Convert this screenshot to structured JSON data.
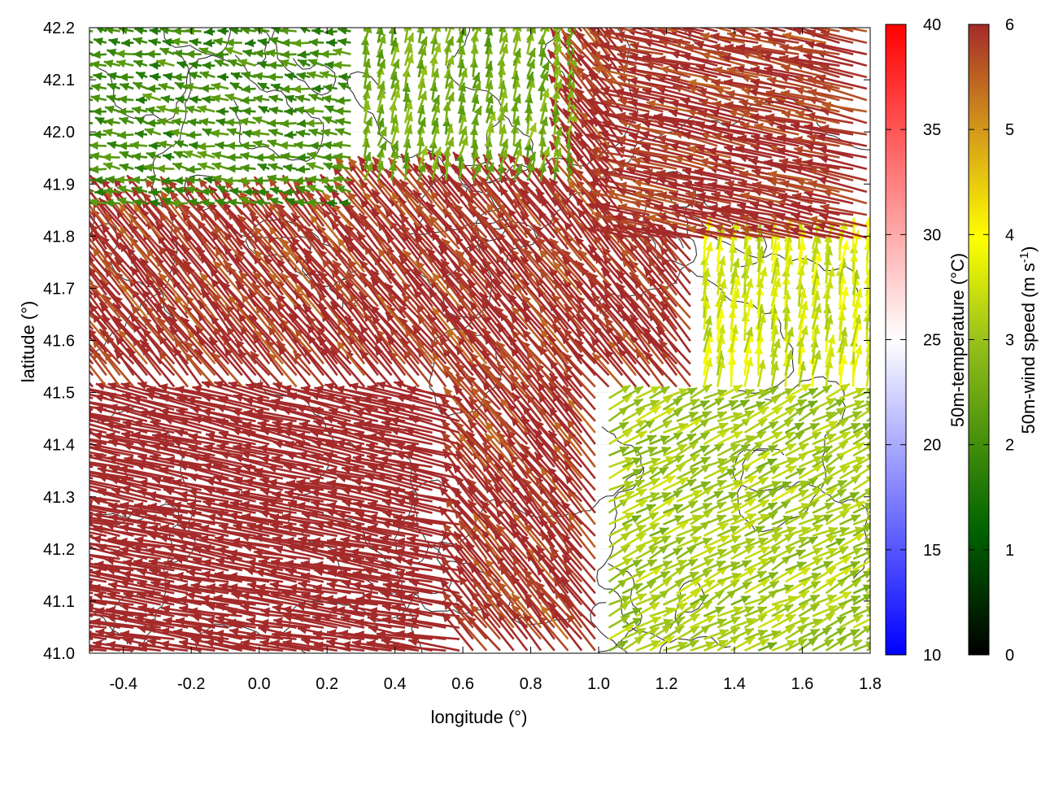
{
  "chart_data": {
    "type": "vector-field",
    "xlabel": "longitude (°)",
    "ylabel": "latitude (°)",
    "xlim": [
      -0.5,
      1.8
    ],
    "ylim": [
      41.0,
      42.2
    ],
    "x_ticks": [
      "-0.4",
      "-0.2",
      "0.0",
      "0.2",
      "0.4",
      "0.6",
      "0.8",
      "1.0",
      "1.2",
      "1.4",
      "1.6",
      "1.8"
    ],
    "y_ticks": [
      "41.0",
      "41.1",
      "41.2",
      "41.3",
      "41.4",
      "41.5",
      "41.6",
      "41.7",
      "41.8",
      "41.9",
      "42.0",
      "42.1",
      "42.2"
    ],
    "grid": true,
    "temperature_colorbar": {
      "label": "50m-temperature (°C)",
      "range": [
        10,
        40
      ],
      "ticks": [
        "10",
        "15",
        "20",
        "25",
        "30",
        "35",
        "40"
      ],
      "colors": [
        "#0000ff",
        "#ffffff",
        "#ff0000"
      ]
    },
    "wind_colorbar": {
      "label_main": "50m-wind speed (m s",
      "label_sup": "-1",
      "label_end": ")",
      "range": [
        0,
        6
      ],
      "ticks": [
        "0",
        "1",
        "2",
        "3",
        "4",
        "5",
        "6"
      ],
      "colors": [
        "#000000",
        "#006400",
        "#99c21a",
        "#ffff00",
        "#d49a1a",
        "#a52a2a"
      ]
    },
    "wind_regions": [
      {
        "region": "northwest",
        "lon": [
          -0.5,
          0.3
        ],
        "lat": [
          41.85,
          42.2
        ],
        "speed": 1.8,
        "direction": "westward"
      },
      {
        "region": "north-central",
        "lon": [
          0.3,
          0.95
        ],
        "lat": [
          41.9,
          42.2
        ],
        "speed": 2.5,
        "direction": "north-northeastward"
      },
      {
        "region": "northeast",
        "lon": [
          1.1,
          1.8
        ],
        "lat": [
          41.8,
          42.2
        ],
        "speed": 6,
        "direction": "west-northwestward"
      },
      {
        "region": "west",
        "lon": [
          -0.5,
          0.6
        ],
        "lat": [
          41.0,
          41.5
        ],
        "speed": 6,
        "direction": "westward"
      },
      {
        "region": "center",
        "lon": [
          0.3,
          1.1
        ],
        "lat": [
          41.4,
          41.85
        ],
        "speed": 6,
        "direction": "northwestward"
      },
      {
        "region": "southeast",
        "lon": [
          1.0,
          1.8
        ],
        "lat": [
          41.0,
          41.5
        ],
        "speed": 3,
        "direction": "east-northeastward"
      }
    ]
  }
}
